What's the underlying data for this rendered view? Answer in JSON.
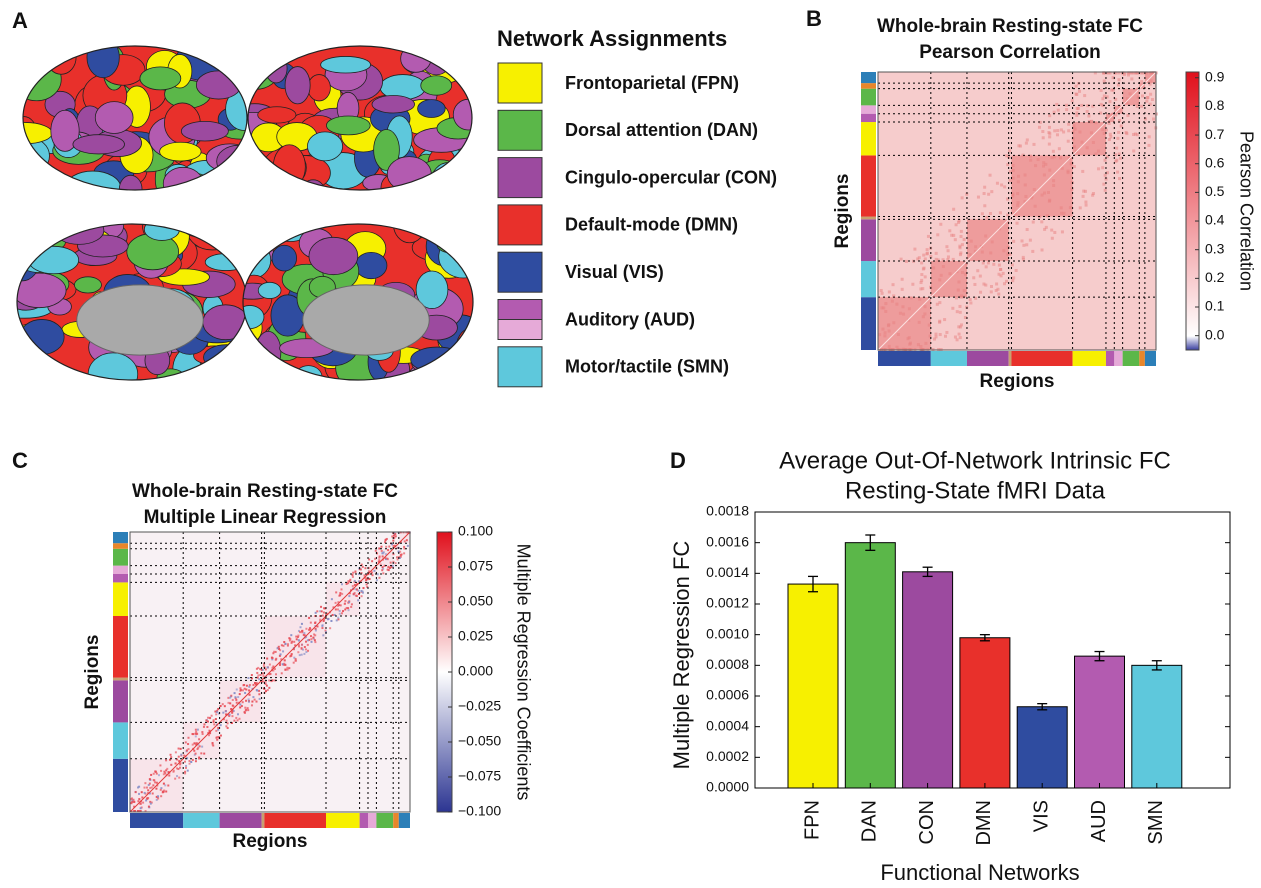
{
  "panel_labels": [
    "A",
    "B",
    "C",
    "D"
  ],
  "legend": {
    "title": "Network Assignments",
    "items": [
      {
        "label": "Frontoparietal (FPN)",
        "color": "#f7f000"
      },
      {
        "label": "Dorsal attention (DAN)",
        "color": "#5bb749"
      },
      {
        "label": "Cingulo-opercular (CON)",
        "color": "#9c4a9f"
      },
      {
        "label": "Default-mode (DMN)",
        "color": "#e8302b"
      },
      {
        "label": "Visual (VIS)",
        "color": "#2f4ca0"
      },
      {
        "label": "Auditory (AUD)",
        "color": "#b35bb0",
        "color_alt": "#e6aad8"
      },
      {
        "label": "Motor/tactile (SMN)",
        "color": "#5ec8dc"
      }
    ]
  },
  "chart_data": [
    {
      "type": "heatmap",
      "title": "Whole-brain Resting-state FC",
      "subtitle": "Pearson Correlation",
      "xlabel": "Regions",
      "ylabel": "Regions",
      "colorbar_label": "Pearson Correlation",
      "clim": [
        -0.05,
        0.92
      ],
      "cticks": [
        {
          "value": 0,
          "label": "0.0"
        },
        0.1,
        0.2,
        0.3,
        0.4,
        0.5,
        0.6,
        0.7,
        0.8,
        0.9
      ]
    },
    {
      "type": "heatmap",
      "title": "Whole-brain Resting-state FC",
      "subtitle": "Multiple Linear Regression",
      "xlabel": "Regions",
      "ylabel": "Regions",
      "colorbar_label": "Multiple Regression Coefficients",
      "clim": [
        -0.1,
        0.1
      ],
      "cticks": [
        {
          "value": -0.1,
          "label": "−0.100"
        },
        {
          "value": -0.075,
          "label": "−0.075"
        },
        {
          "value": -0.05,
          "label": "−0.050"
        },
        {
          "value": -0.025,
          "label": "−0.025"
        },
        {
          "value": 0,
          "label": "0.000"
        },
        {
          "value": 0.025,
          "label": "0.025"
        },
        {
          "value": 0.05,
          "label": "0.050"
        },
        {
          "value": 0.075,
          "label": "0.075"
        },
        {
          "value": 0.1,
          "label": "0.100"
        }
      ]
    },
    {
      "type": "bar",
      "title": "Average Out-Of-Network Intrinsic FC",
      "subtitle": "Resting-State fMRI Data",
      "xlabel": "Functional Networks",
      "ylabel": "Multiple Regression FC",
      "categories": [
        "FPN",
        "DAN",
        "CON",
        "DMN",
        "VIS",
        "AUD",
        "SMN"
      ],
      "values": [
        0.00133,
        0.0016,
        0.00141,
        0.00098,
        0.00053,
        0.00086,
        0.0008
      ],
      "errors": [
        5e-05,
        5e-05,
        3e-05,
        2e-05,
        2e-05,
        3e-05,
        3e-05
      ],
      "colors": [
        "#f7f000",
        "#5bb749",
        "#9c4a9f",
        "#e8302b",
        "#2f4ca0",
        "#b35bb0",
        "#5ec8dc"
      ],
      "ylim": [
        0,
        0.0018
      ],
      "yticks": [
        {
          "value": 0,
          "label": "0.0000"
        },
        {
          "value": 0.0002,
          "label": "0.0002"
        },
        {
          "value": 0.0004,
          "label": "0.0004"
        },
        {
          "value": 0.0006,
          "label": "0.0006"
        },
        {
          "value": 0.0008,
          "label": "0.0008"
        },
        {
          "value": 0.001,
          "label": "0.0010"
        },
        {
          "value": 0.0012,
          "label": "0.0012"
        },
        {
          "value": 0.0014,
          "label": "0.0014"
        },
        {
          "value": 0.0016,
          "label": "0.0016"
        },
        {
          "value": 0.0018,
          "label": "0.0018"
        }
      ]
    }
  ]
}
